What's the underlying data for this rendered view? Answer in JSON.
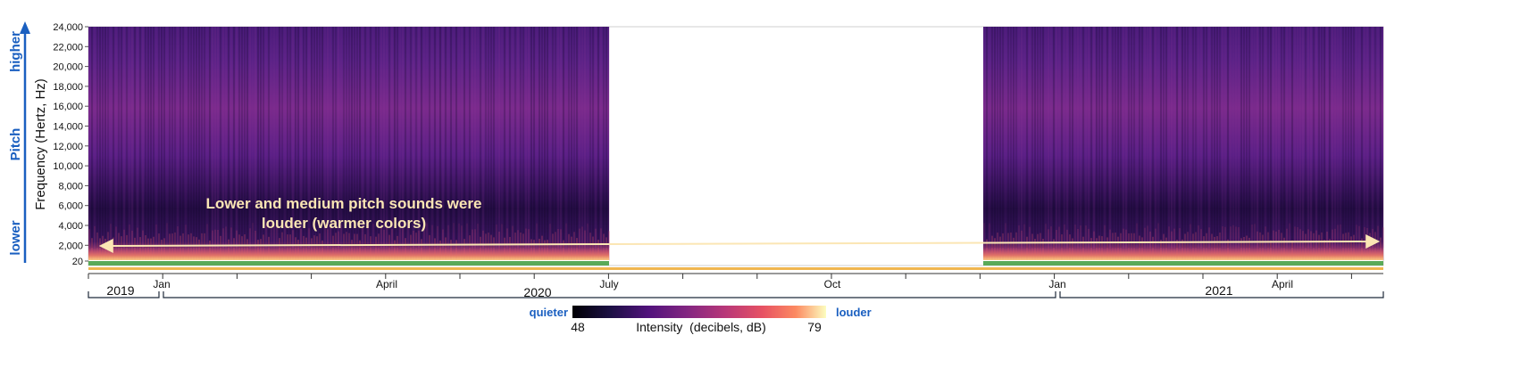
{
  "chart_data": {
    "type": "heatmap",
    "ylabel": "Frequency (Hertz, Hz)",
    "y_ticks": [
      "24,000",
      "22,000",
      "20,000",
      "18,000",
      "16,000",
      "14,000",
      "12,000",
      "10,000",
      "8,000",
      "6,000",
      "4,000",
      "2,000",
      "20"
    ],
    "ylim": [
      20,
      24000
    ],
    "pitch_axis": {
      "title": "Pitch",
      "high": "higher",
      "low": "lower"
    },
    "annotation": [
      "Lower and medium pitch sounds were",
      "louder (warmer colors)"
    ],
    "x_months": [
      "Jan",
      "April",
      "July",
      "Oct",
      "Jan",
      "April"
    ],
    "x_years": [
      "2019",
      "2020",
      "2021"
    ],
    "recording_periods": [
      {
        "start": "2019-10",
        "end": "2020-07",
        "recorded": true
      },
      {
        "start": "2020-07",
        "end": "2020-12",
        "recorded": false
      },
      {
        "start": "2020-12",
        "end": "2021-06",
        "recorded": true
      }
    ],
    "colorbar": {
      "min": 48,
      "max": 79,
      "label": "Intensity  (decibels, dB)",
      "low_word": "quieter",
      "high_word": "louder",
      "colormap": "magma"
    },
    "grid": false
  },
  "colors": {
    "pitch_blue": "#1a5fc0",
    "annotation": "#fbe6b4",
    "status_green": "#5aaa58",
    "status_orange": "#f0b650"
  }
}
